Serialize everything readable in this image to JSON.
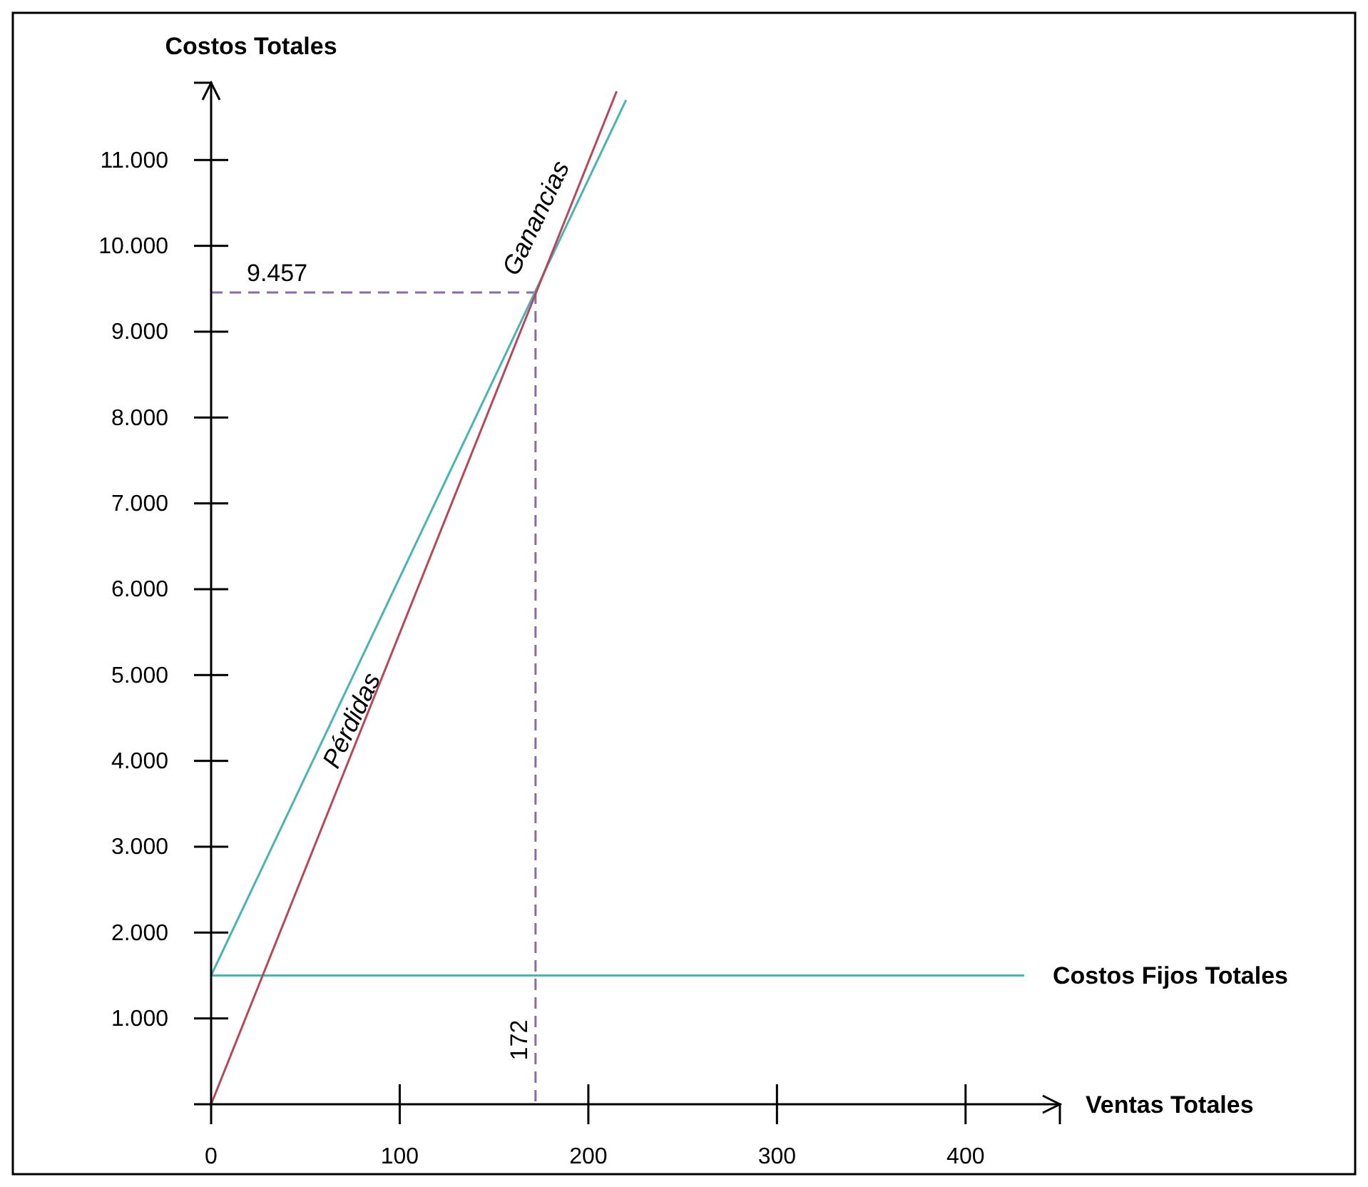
{
  "chart_data": {
    "type": "line",
    "xlabel": "Ventas Totales",
    "ylabel": "Costos Totales",
    "xlim": [
      0,
      450
    ],
    "xticks": [
      0,
      100,
      200,
      300,
      400
    ],
    "ylim": [
      0,
      11900
    ],
    "yticks": [
      {
        "value": 1000,
        "label": "1.000"
      },
      {
        "value": 2000,
        "label": "2.000"
      },
      {
        "value": 3000,
        "label": "3.000"
      },
      {
        "value": 4000,
        "label": "4.000"
      },
      {
        "value": 5000,
        "label": "5.000"
      },
      {
        "value": 6000,
        "label": "6.000"
      },
      {
        "value": 7000,
        "label": "7.000"
      },
      {
        "value": 8000,
        "label": "8.000"
      },
      {
        "value": 9000,
        "label": "9.000"
      },
      {
        "value": 10000,
        "label": "10.000"
      },
      {
        "value": 11000,
        "label": "11.000"
      }
    ],
    "series": [
      {
        "color": "#4bb3b3",
        "x": [
          0,
          220
        ],
        "values": [
          1500,
          11700
        ]
      },
      {
        "color": "#b5485a",
        "x": [
          0,
          215
        ],
        "values": [
          0,
          11800
        ]
      }
    ],
    "ref_lines": [
      {
        "axis": "y",
        "value": 1500,
        "label": "Costos Fijos Totales",
        "color": "#4bb3b3",
        "line_style": "solid"
      },
      {
        "axis": "y",
        "value": 9457,
        "label": "9.457",
        "color": "#8a6aa8",
        "line_style": "dashed"
      },
      {
        "axis": "x",
        "value": 172,
        "label": "172",
        "color": "#8a6aa8",
        "line_style": "dashed"
      }
    ],
    "annotations": [
      "Ganancias",
      "Pérdidas"
    ],
    "grid": false,
    "marker": "none",
    "line_style": "solid"
  }
}
